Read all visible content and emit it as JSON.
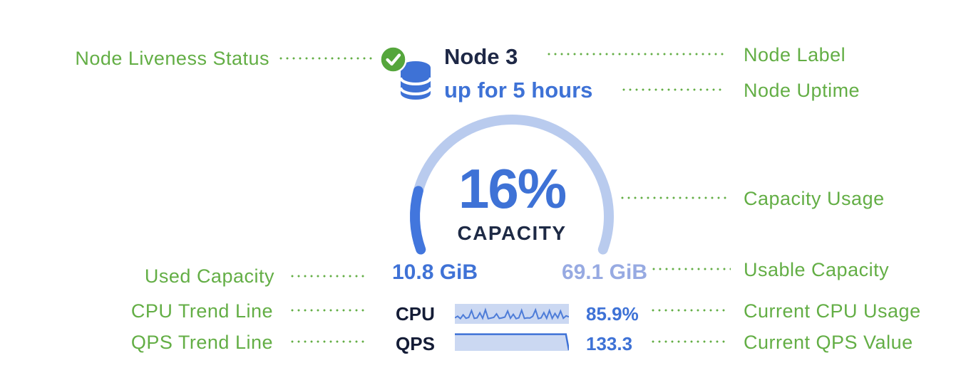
{
  "colors": {
    "annotation_green": "#63ae45",
    "badge_green": "#55a63c",
    "primary_blue": "#3e72d6",
    "gauge_track_blue": "#b9cbee",
    "gauge_fill_blue": "#4276dd",
    "box_fill_blue": "#cbd8f2",
    "muted_blue": "#97aae2",
    "dark_navy": "#1e2a45"
  },
  "node_card": {
    "status_icon": "check-circle-icon",
    "node_icon": "database-icon",
    "label": "Node 3",
    "uptime": "up for 5 hours",
    "gauge": {
      "percent": 16,
      "percent_label": "16%",
      "caption": "CAPACITY"
    },
    "used_capacity": "10.8 GiB",
    "usable_capacity": "69.1 GiB",
    "metrics": [
      {
        "label": "CPU",
        "value": "85.9%"
      },
      {
        "label": "QPS",
        "value": "133.3"
      }
    ]
  },
  "trends": {
    "cpu": {
      "points": [
        0.7,
        0.62,
        0.74,
        0.55,
        0.72,
        0.68,
        0.34,
        0.73,
        0.7,
        0.45,
        0.72,
        0.3,
        0.74,
        0.71,
        0.68,
        0.5,
        0.73,
        0.7,
        0.66,
        0.36,
        0.72,
        0.52,
        0.74,
        0.7,
        0.32,
        0.73,
        0.7,
        0.71,
        0.62,
        0.3,
        0.74,
        0.7,
        0.44,
        0.72,
        0.34,
        0.73,
        0.48,
        0.7,
        0.36,
        0.72,
        0.6,
        0.65
      ]
    },
    "qps": {
      "points": [
        0.1,
        0.1,
        0.1,
        0.1,
        0.1,
        0.1,
        0.1,
        0.1,
        0.1,
        0.1,
        0.1,
        0.1,
        0.1,
        0.1,
        0.1,
        0.1,
        0.1,
        0.1,
        0.1,
        0.1,
        0.1,
        0.1,
        0.1,
        0.1,
        0.1,
        0.1,
        0.1,
        0.1,
        0.1,
        0.1,
        0.1,
        0.1,
        0.1,
        0.1,
        0.1,
        0.1,
        0.1,
        0.1,
        1.0
      ]
    }
  },
  "annotations": {
    "left": [
      {
        "label": "Node Liveness Status"
      },
      {
        "label": "Used Capacity"
      },
      {
        "label": "CPU Trend Line"
      },
      {
        "label": "QPS Trend Line"
      }
    ],
    "right": [
      {
        "label": "Node Label"
      },
      {
        "label": "Node Uptime"
      },
      {
        "label": "Capacity Usage"
      },
      {
        "label": "Usable Capacity"
      },
      {
        "label": "Current CPU Usage"
      },
      {
        "label": "Current QPS Value"
      }
    ]
  }
}
